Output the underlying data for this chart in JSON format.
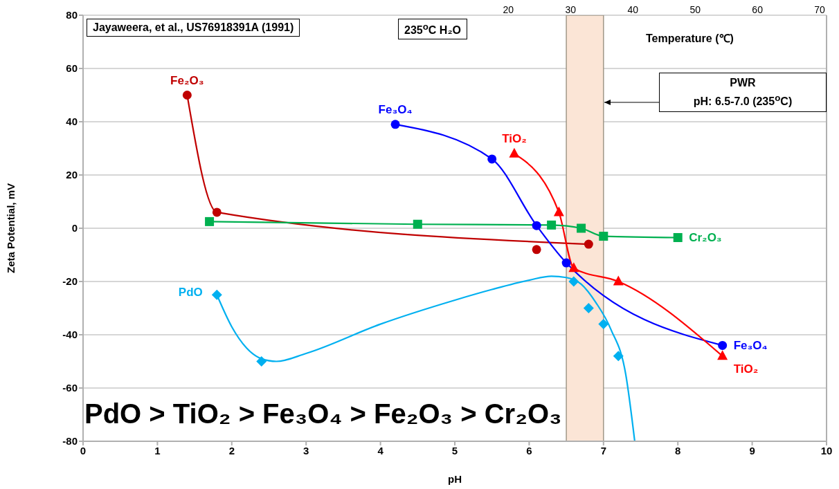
{
  "chart_data": {
    "type": "line",
    "xlabel": "pH",
    "ylabel": "Zeta Potential, mV",
    "x2label": "Temperature (℃)",
    "xlim": [
      0,
      10
    ],
    "xticks": [
      0,
      1,
      2,
      3,
      4,
      5,
      6,
      7,
      8,
      9,
      10
    ],
    "ylim": [
      -80,
      80
    ],
    "yticks": [
      -80,
      -60,
      -40,
      -20,
      0,
      20,
      40,
      60,
      80
    ],
    "x2lim": [
      -48.3,
      71.1
    ],
    "x2ticks": [
      20,
      30,
      40,
      50,
      60,
      70
    ],
    "grid": "y",
    "bands": [
      {
        "axis": "x",
        "from": 6.5,
        "to": 7.0,
        "color": "#fbe5d6"
      }
    ],
    "annotations": [
      "Jayaweera, et al., US76918391A (1991)",
      "235$^{o}$C H₂O",
      "PWR\npH: 6.5-7.0 (235$^{o}$C)",
      "PdO > TiO₂ > Fe₃O₄ > Fe₂O₃ > Cr₂O₃",
      {
        "text": "Fe₂O₃",
        "x": 1.4,
        "y": 50
      },
      {
        "text": "Fe₃O₄",
        "x": 4.2,
        "y": 39
      },
      {
        "text": "TiO₂",
        "x": 5.8,
        "y": 28
      }
    ],
    "series": [
      {
        "marker": "circle",
        "color": "#c00000",
        "x": [
          1.4,
          1.8,
          6.8
        ],
        "values": [
          50,
          6,
          -6
        ]
      },
      {
        "type": "scatter",
        "marker": "circle",
        "color": "#c00000",
        "x": [
          6.1
        ],
        "values": [
          -8
        ]
      },
      {
        "name": "Fe₃O₄",
        "marker": "circle",
        "color": "#0000ff",
        "x": [
          4.2,
          5.5,
          6.1,
          6.5,
          8.6
        ],
        "values": [
          39,
          26,
          1,
          -13,
          -44
        ]
      },
      {
        "name": "TiO₂",
        "marker": "triangle",
        "color": "#ff0000",
        "x": [
          5.8,
          6.4,
          6.6,
          7.2,
          8.6
        ],
        "values": [
          28,
          6,
          -15,
          -20,
          -48
        ]
      },
      {
        "name": "Cr₂O₃",
        "marker": "square",
        "color": "#00b050",
        "x": [
          1.7,
          4.5,
          6.3,
          6.7,
          7.0,
          8.0
        ],
        "values": [
          2.5,
          1.5,
          1.2,
          0,
          -3,
          -3.5
        ]
      },
      {
        "name": "PdO",
        "type": "scatter",
        "marker": "diamond",
        "color": "#00b0f0",
        "x": [
          1.8,
          2.4,
          6.6,
          6.8,
          7.0,
          7.2
        ],
        "values": [
          -25,
          -50,
          -20,
          -30,
          -36,
          -48
        ]
      },
      {
        "marker": "none",
        "color": "#00b0f0",
        "x": [
          1.8,
          2.0,
          2.2,
          2.4,
          2.6,
          3.0,
          4.0,
          5.0,
          5.5,
          6.0,
          6.3,
          6.5,
          6.7,
          6.9,
          7.1,
          7.3,
          7.42
        ],
        "values": [
          -25,
          -37,
          -45,
          -49,
          -50,
          -47,
          -36,
          -27,
          -23,
          -19.5,
          -18,
          -18.5,
          -21,
          -28,
          -38,
          -55,
          -80
        ]
      }
    ]
  }
}
